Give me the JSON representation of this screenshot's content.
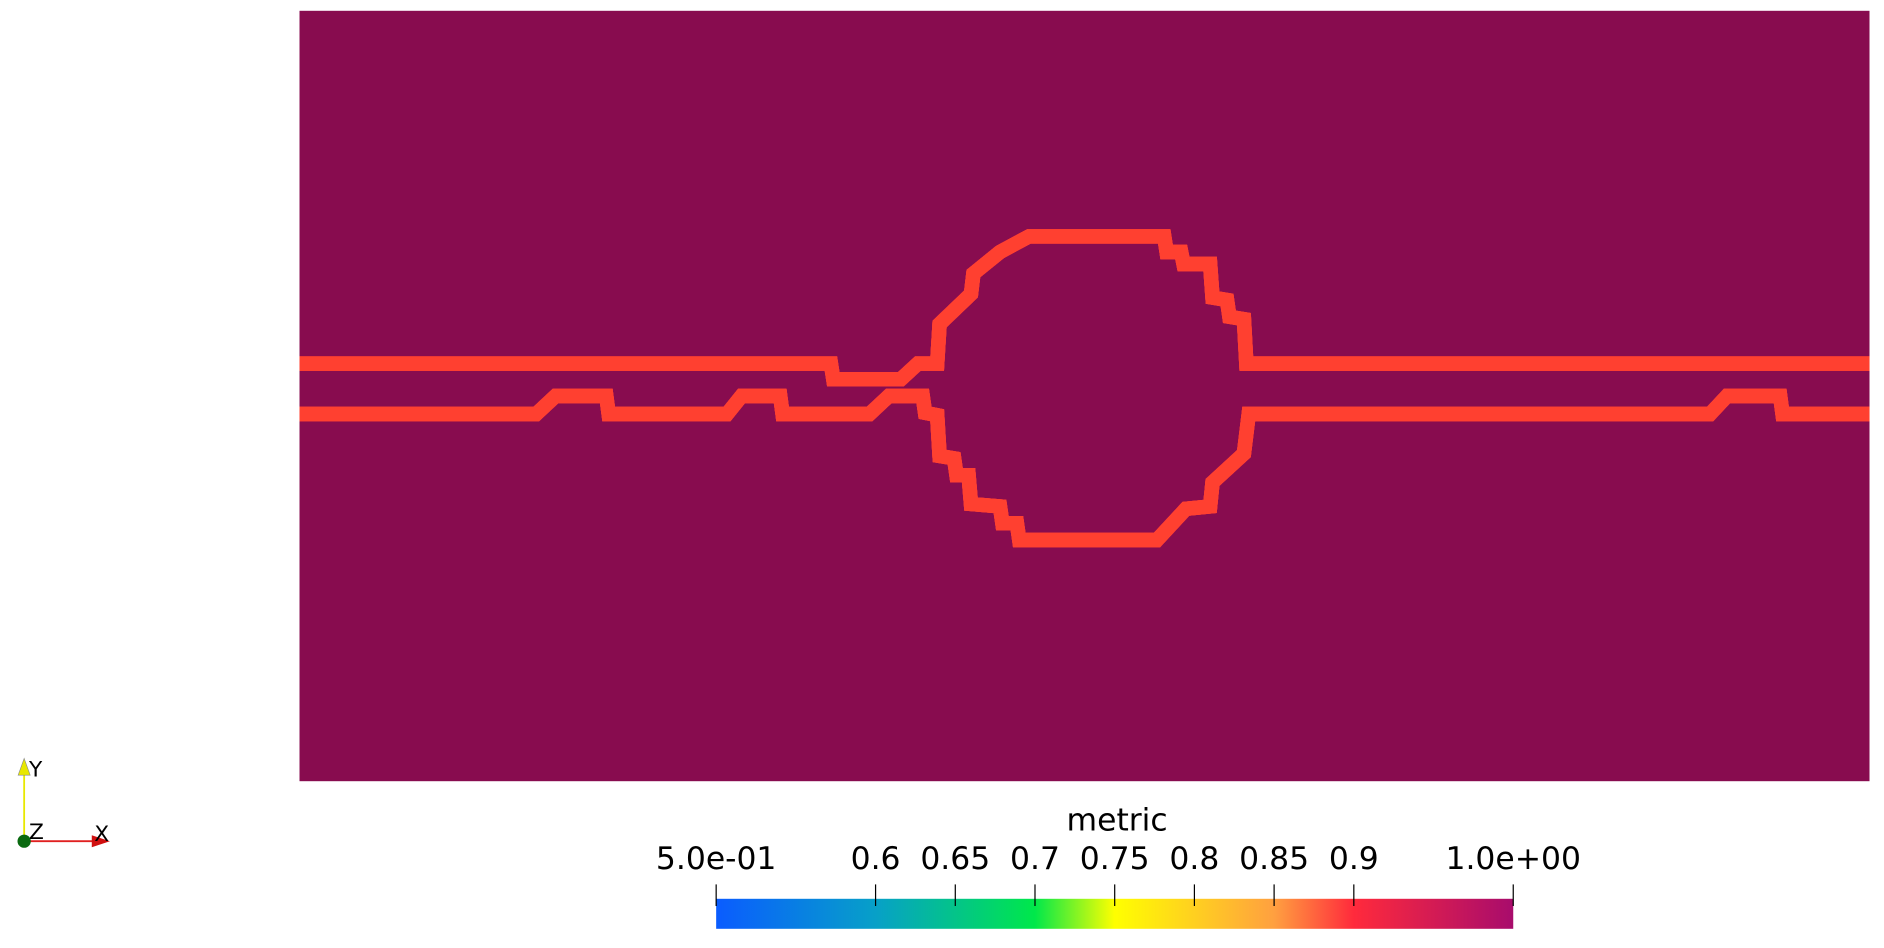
{
  "colorbar": {
    "title": "metric",
    "range": [
      0.5,
      1
    ],
    "ticks": [
      {
        "value": 0.5,
        "label": "5.0e-01"
      },
      0.6,
      0.65,
      0.7,
      0.75,
      0.8,
      0.85,
      0.9,
      {
        "value": 1,
        "label": "1.0e+00"
      }
    ]
  },
  "axes": {
    "x": "X",
    "y": "Y",
    "z": "Z"
  }
}
